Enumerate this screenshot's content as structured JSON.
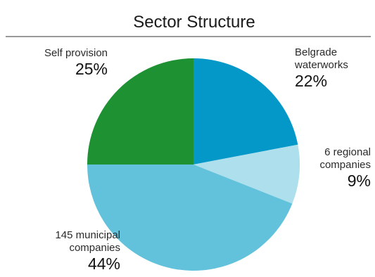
{
  "chart_data": {
    "type": "pie",
    "title": "Sector Structure",
    "start_angle_deg": 0,
    "direction": "clockwise",
    "slices": [
      {
        "name_lines": [
          "Belgrade",
          "waterworks"
        ],
        "value": 22,
        "pct_label": "22%",
        "color": "#0398c8"
      },
      {
        "name_lines": [
          "6 regional",
          "companies"
        ],
        "value": 9,
        "pct_label": "9%",
        "color": "#addfec"
      },
      {
        "name_lines": [
          "145 municipal",
          "companies"
        ],
        "value": 44,
        "pct_label": "44%",
        "color": "#62c2dc"
      },
      {
        "name_lines": [
          "Self provision"
        ],
        "value": 25,
        "pct_label": "25%",
        "color": "#1e9232"
      }
    ],
    "legend": "none"
  }
}
